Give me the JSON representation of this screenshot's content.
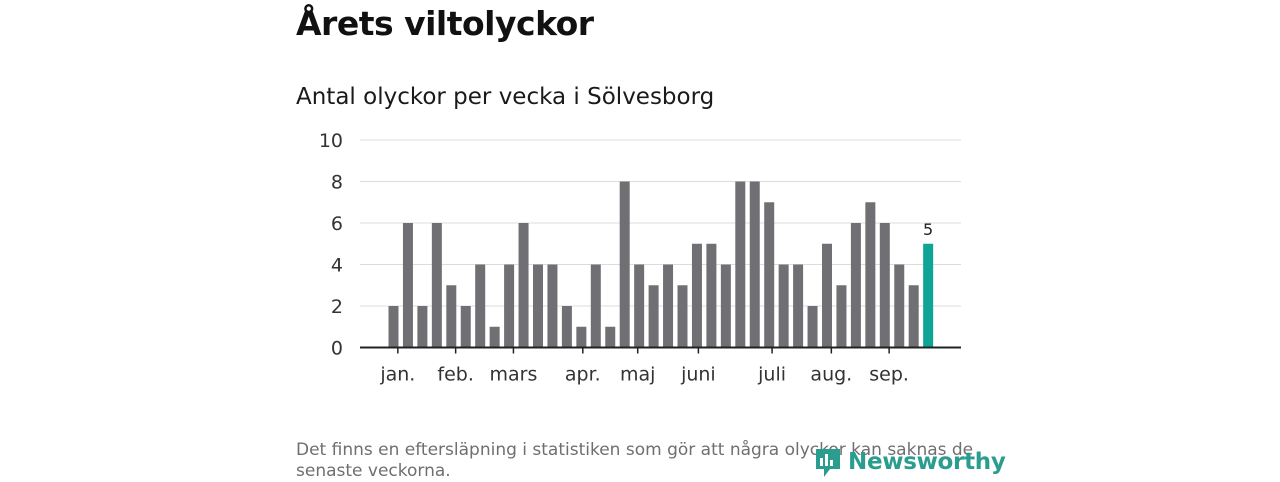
{
  "title": "Årets viltolyckor",
  "footnote": "Det finns en eftersläpning i statistiken som gör att några olyckor kan saknas de senaste veckorna.",
  "brand": "Newsworthy",
  "colors": {
    "bar": "#707074",
    "highlight": "#0fa596",
    "grid": "#dcdcdc",
    "axis": "#222222",
    "brand": "#2a9d8f"
  },
  "chart_data": {
    "type": "bar",
    "title": "Antal olyckor per vecka i Sölvesborg",
    "xlabel": "",
    "ylabel": "",
    "ylim": [
      0,
      10
    ],
    "yticks": [
      0,
      2,
      4,
      6,
      8,
      10
    ],
    "weeks": [
      1,
      2,
      3,
      4,
      5,
      6,
      7,
      8,
      9,
      10,
      11,
      12,
      13,
      14,
      15,
      16,
      17,
      18,
      19,
      20,
      21,
      22,
      23,
      24,
      25,
      26,
      27,
      28,
      29,
      30,
      31,
      32,
      33,
      34,
      35,
      36,
      37,
      38
    ],
    "values": [
      2,
      6,
      2,
      6,
      3,
      2,
      4,
      1,
      4,
      6,
      4,
      4,
      2,
      1,
      4,
      1,
      8,
      4,
      3,
      4,
      3,
      5,
      5,
      4,
      8,
      8,
      7,
      4,
      4,
      2,
      5,
      3,
      6,
      7,
      6,
      4,
      3,
      5
    ],
    "highlight_label": "5",
    "month_ticks": [
      {
        "label": "jan.",
        "week": 1.3
      },
      {
        "label": "feb.",
        "week": 5.3
      },
      {
        "label": "mars",
        "week": 9.3
      },
      {
        "label": "apr.",
        "week": 14.1
      },
      {
        "label": "maj",
        "week": 17.9
      },
      {
        "label": "juni",
        "week": 22.1
      },
      {
        "label": "juli",
        "week": 27.2
      },
      {
        "label": "aug.",
        "week": 31.3
      },
      {
        "label": "sep.",
        "week": 35.3
      }
    ]
  }
}
